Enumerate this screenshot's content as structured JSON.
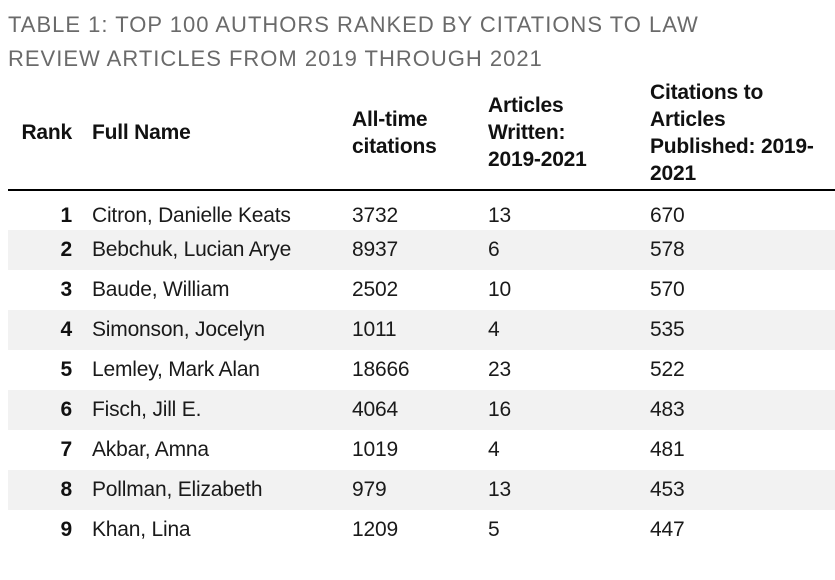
{
  "title": "TABLE 1: TOP 100 AUTHORS RANKED BY CITATIONS TO LAW\nREVIEW ARTICLES FROM 2019 THROUGH 2021",
  "colors": {
    "title_text": "#6a6a6a",
    "header_text": "#111111",
    "body_text": "#1a1a1a",
    "alt_row_background": "#f2f2f2",
    "header_rule": "#000000"
  },
  "table": {
    "headers": [
      "Rank",
      "Full Name",
      "All-time\ncitations",
      "Articles\nWritten:\n2019-2021",
      "Citations to\nArticles\nPublished: 2019-\n2021"
    ],
    "rows": [
      {
        "rank": "1",
        "name": "Citron, Danielle Keats",
        "all_time": "3732",
        "articles": "13",
        "citations": "670"
      },
      {
        "rank": "2",
        "name": "Bebchuk, Lucian Arye",
        "all_time": "8937",
        "articles": "6",
        "citations": "578"
      },
      {
        "rank": "3",
        "name": "Baude, William",
        "all_time": "2502",
        "articles": "10",
        "citations": "570"
      },
      {
        "rank": "4",
        "name": "Simonson, Jocelyn",
        "all_time": "1011",
        "articles": "4",
        "citations": "535"
      },
      {
        "rank": "5",
        "name": "Lemley, Mark Alan",
        "all_time": "18666",
        "articles": "23",
        "citations": "522"
      },
      {
        "rank": "6",
        "name": "Fisch, Jill E.",
        "all_time": "4064",
        "articles": "16",
        "citations": "483"
      },
      {
        "rank": "7",
        "name": "Akbar, Amna",
        "all_time": "1019",
        "articles": "4",
        "citations": "481"
      },
      {
        "rank": "8",
        "name": "Pollman, Elizabeth",
        "all_time": "979",
        "articles": "13",
        "citations": "453"
      },
      {
        "rank": "9",
        "name": "Khan, Lina",
        "all_time": "1209",
        "articles": "5",
        "citations": "447"
      }
    ]
  }
}
